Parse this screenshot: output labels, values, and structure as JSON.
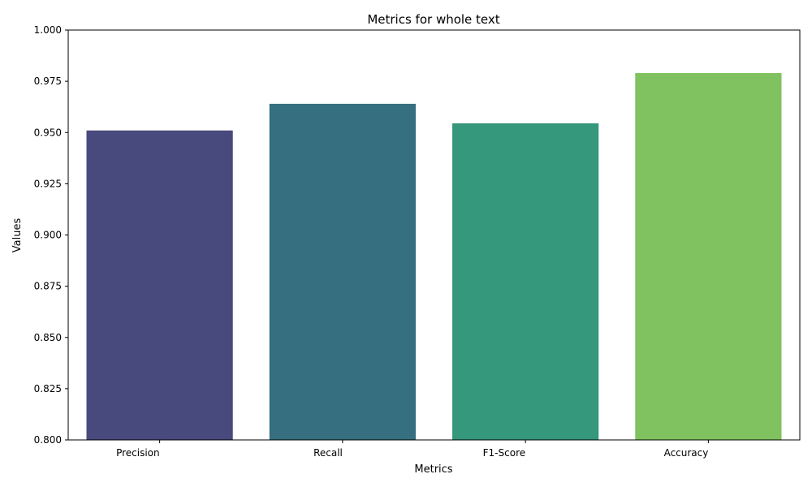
{
  "chart_data": {
    "type": "bar",
    "title": "Metrics for whole text",
    "xlabel": "Metrics",
    "ylabel": "Values",
    "categories": [
      "Precision",
      "Recall",
      "F1-Score",
      "Accuracy"
    ],
    "values": [
      0.951,
      0.964,
      0.9545,
      0.979
    ],
    "colors": [
      "#48497c",
      "#366f7f",
      "#35977b",
      "#7fc25f"
    ],
    "ylim": [
      0.8,
      1.0
    ],
    "yticks": [
      "0.800",
      "0.825",
      "0.850",
      "0.875",
      "0.900",
      "0.925",
      "0.950",
      "0.975",
      "1.000"
    ],
    "grid": false,
    "legend": "none"
  }
}
